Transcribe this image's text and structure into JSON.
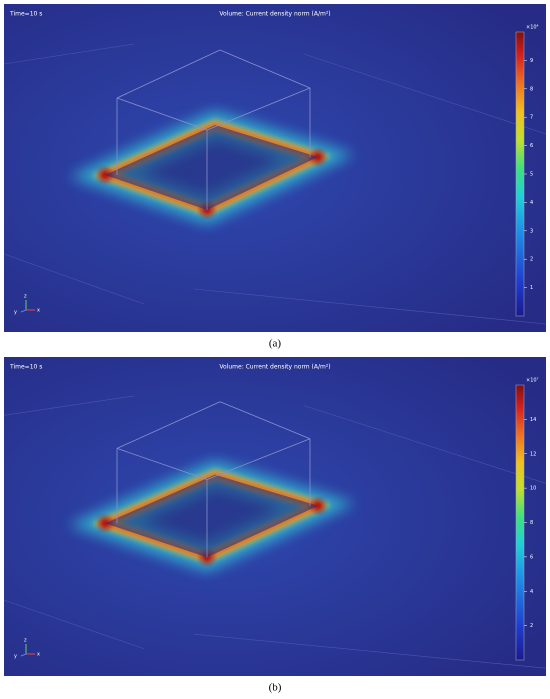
{
  "panels": [
    {
      "time_label": "Time=10 s",
      "title": "Volume: Current density norm (A/m²)",
      "colorbar": {
        "exponent_label": "×10⁴",
        "lim": [
          0,
          10
        ],
        "ticks": [
          1,
          2,
          3,
          4,
          5,
          6,
          7,
          8,
          9
        ]
      },
      "axes": {
        "x": "x",
        "y": "y",
        "z": "z"
      },
      "caption": "(a)"
    },
    {
      "time_label": "Time=10 s",
      "title": "Volume: Current density norm (A/m²)",
      "colorbar": {
        "exponent_label": "×10⁷",
        "lim": [
          0,
          16
        ],
        "ticks": [
          2,
          4,
          6,
          8,
          10,
          12,
          14
        ]
      },
      "axes": {
        "x": "x",
        "y": "y",
        "z": "z"
      },
      "caption": "(b)"
    }
  ]
}
